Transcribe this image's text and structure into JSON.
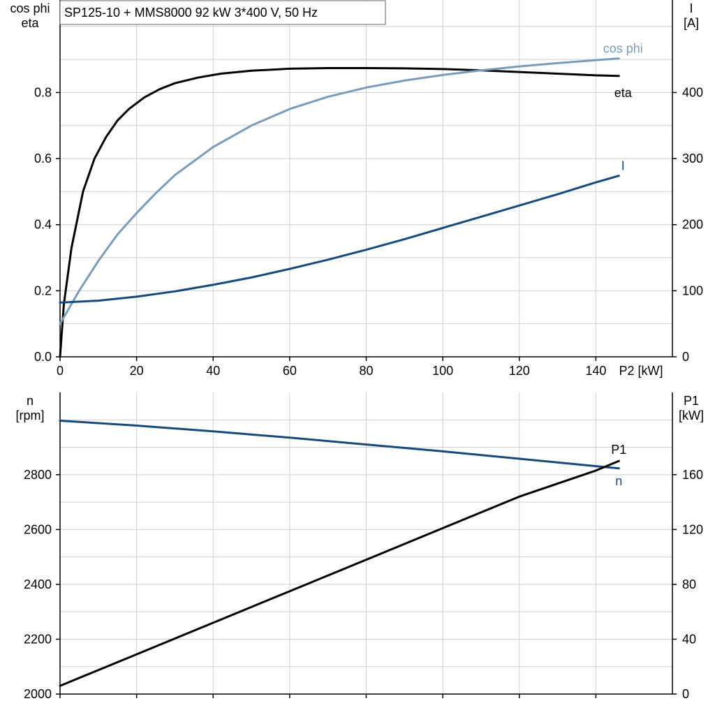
{
  "chart_data": [
    {
      "type": "line",
      "title": "SP125-10 + MMS8000   92 kW   3*400 V, 50 Hz",
      "xlabel": "P2 [kW]",
      "ylabel_left": [
        "cos phi",
        "eta"
      ],
      "ylabel_right": [
        "I",
        "[A]"
      ],
      "xlim": [
        0,
        160
      ],
      "ylim_left": [
        0,
        1.08
      ],
      "ylim_right": [
        0,
        540
      ],
      "x_ticks": [
        0,
        20,
        40,
        60,
        80,
        100,
        120,
        140
      ],
      "y_ticks_left": [
        0.0,
        0.2,
        0.4,
        0.6,
        0.8
      ],
      "y_ticks_right": [
        0,
        100,
        200,
        300,
        400
      ],
      "grid": true,
      "series": [
        {
          "name": "eta",
          "axis": "left",
          "color": "#000000",
          "x": [
            0,
            1,
            3,
            6,
            9,
            12,
            15,
            18,
            22,
            26,
            30,
            36,
            42,
            50,
            60,
            70,
            80,
            90,
            100,
            110,
            120,
            130,
            140,
            146
          ],
          "y": [
            0.0,
            0.16,
            0.33,
            0.5,
            0.6,
            0.665,
            0.715,
            0.75,
            0.785,
            0.81,
            0.828,
            0.845,
            0.857,
            0.866,
            0.872,
            0.874,
            0.874,
            0.873,
            0.871,
            0.867,
            0.862,
            0.857,
            0.852,
            0.85
          ]
        },
        {
          "name": "cos phi",
          "axis": "left",
          "color": "#7a9cba",
          "x": [
            0,
            5,
            10,
            15,
            20,
            25,
            30,
            40,
            50,
            60,
            70,
            80,
            90,
            100,
            110,
            120,
            130,
            140,
            146
          ],
          "y": [
            0.1,
            0.2,
            0.29,
            0.37,
            0.435,
            0.495,
            0.55,
            0.635,
            0.7,
            0.75,
            0.787,
            0.815,
            0.836,
            0.853,
            0.867,
            0.879,
            0.889,
            0.898,
            0.903
          ]
        },
        {
          "name": "I",
          "axis": "right",
          "color": "#164a7f",
          "x": [
            0,
            10,
            20,
            30,
            40,
            50,
            60,
            70,
            80,
            90,
            100,
            110,
            120,
            130,
            140,
            146
          ],
          "y": [
            82,
            85,
            91,
            99,
            109,
            120,
            133,
            147,
            162,
            178,
            195,
            212,
            229,
            246,
            264,
            274
          ]
        }
      ]
    },
    {
      "type": "line",
      "title": "",
      "xlabel": "",
      "ylabel_left": [
        "n",
        "[rpm]"
      ],
      "ylabel_right": [
        "P1",
        "[kW]"
      ],
      "xlim": [
        0,
        160
      ],
      "ylim_left": [
        2000,
        3100
      ],
      "ylim_right": [
        0,
        220
      ],
      "x_ticks": [
        0,
        20,
        40,
        60,
        80,
        100,
        120,
        140
      ],
      "y_ticks_left": [
        2000,
        2200,
        2400,
        2600,
        2800
      ],
      "y_ticks_right": [
        0,
        40,
        80,
        120,
        160
      ],
      "grid": true,
      "series": [
        {
          "name": "n",
          "axis": "left",
          "color": "#164a7f",
          "x": [
            0,
            20,
            40,
            60,
            80,
            100,
            120,
            140,
            146
          ],
          "y": [
            2997,
            2979,
            2958,
            2935,
            2910,
            2885,
            2858,
            2831,
            2823
          ]
        },
        {
          "name": "P1",
          "axis": "right",
          "color": "#000000",
          "x": [
            0,
            20,
            40,
            60,
            80,
            100,
            120,
            140,
            146
          ],
          "y": [
            6,
            29,
            52,
            75,
            98,
            121,
            144,
            163,
            170
          ]
        }
      ]
    }
  ]
}
